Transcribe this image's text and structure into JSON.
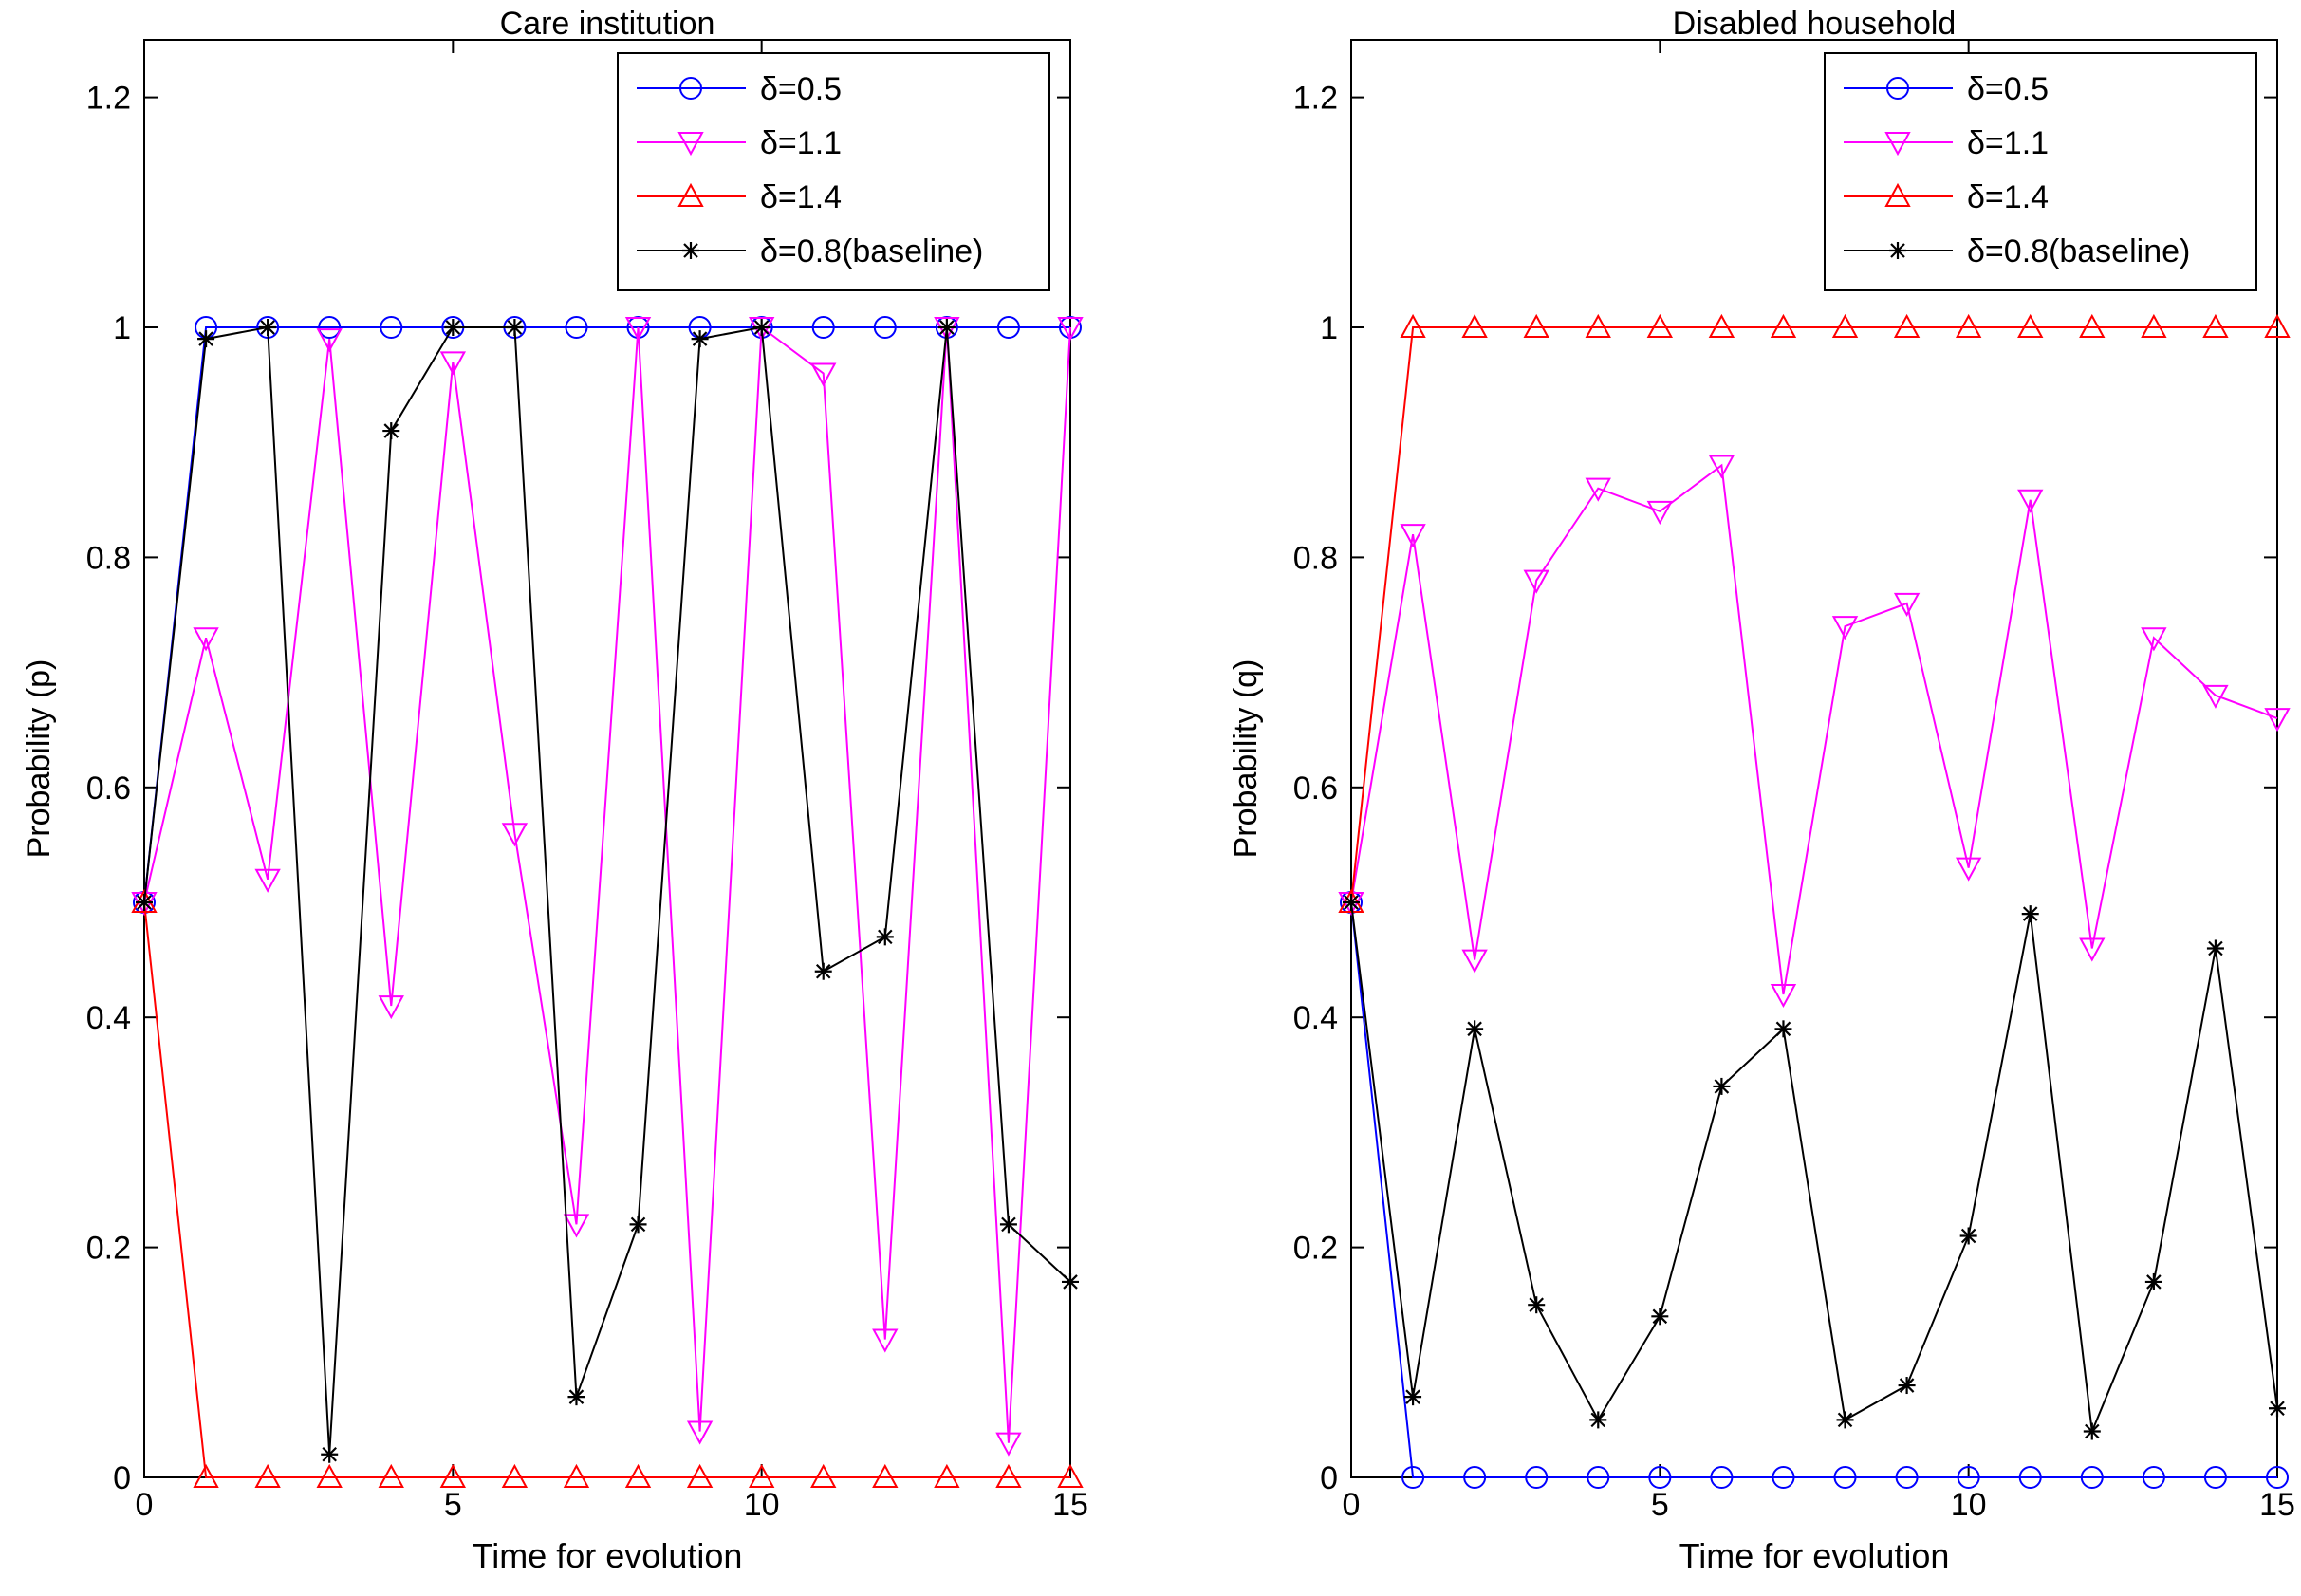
{
  "chart_data": [
    {
      "type": "line",
      "title": "Care institution",
      "xlabel": "Time for evolution",
      "ylabel": "Probability (p)",
      "xlim": [
        0,
        15
      ],
      "ylim": [
        0,
        1.25
      ],
      "xticks": [
        0,
        5,
        10,
        15
      ],
      "yticks": [
        0,
        0.2,
        0.4,
        0.6,
        0.8,
        1,
        1.2
      ],
      "ytick_labels": [
        "0",
        "0.2",
        "0.4",
        "0.6",
        "0.8",
        "1",
        "1.2"
      ],
      "xtick_labels": [
        "0",
        "5",
        "10",
        "15"
      ],
      "grid": false,
      "legend_position": "top-right",
      "x": [
        0,
        1,
        2,
        3,
        4,
        5,
        6,
        7,
        8,
        9,
        10,
        11,
        12,
        13,
        14,
        15
      ],
      "series": [
        {
          "name": "δ=0.5",
          "color": "#0000ff",
          "marker": "circle",
          "values": [
            0.5,
            1,
            1,
            1,
            1,
            1,
            1,
            1,
            1,
            1,
            1,
            1,
            1,
            1,
            1,
            1
          ]
        },
        {
          "name": "δ=1.1",
          "color": "#ff00ff",
          "marker": "triangle-down",
          "values": [
            0.5,
            0.73,
            0.52,
            0.99,
            0.41,
            0.97,
            0.56,
            0.22,
            1.0,
            0.04,
            1.0,
            0.96,
            0.12,
            1.0,
            0.03,
            1.0
          ]
        },
        {
          "name": "δ=1.4",
          "color": "#ff0000",
          "marker": "triangle-up",
          "values": [
            0.5,
            0,
            0,
            0,
            0,
            0,
            0,
            0,
            0,
            0,
            0,
            0,
            0,
            0,
            0,
            0
          ]
        },
        {
          "name": "δ=0.8(baseline)",
          "color": "#000000",
          "marker": "star",
          "x": [
            0,
            1,
            2,
            3,
            4,
            5,
            6,
            7,
            8,
            9,
            10,
            11,
            12,
            13,
            14,
            15
          ],
          "values": [
            0.5,
            0.99,
            1.0,
            0.02,
            0.91,
            1.0,
            1.0,
            0.07,
            0.22,
            0.99,
            1.0,
            0.44,
            0.47,
            1.0,
            0.22,
            0.17
          ]
        }
      ]
    },
    {
      "type": "line",
      "title": "Disabled household",
      "xlabel": "Time for evolution",
      "ylabel": "Probability (q)",
      "xlim": [
        0,
        15
      ],
      "ylim": [
        0,
        1.25
      ],
      "xticks": [
        0,
        5,
        10,
        15
      ],
      "yticks": [
        0,
        0.2,
        0.4,
        0.6,
        0.8,
        1,
        1.2
      ],
      "ytick_labels": [
        "0",
        "0.2",
        "0.4",
        "0.6",
        "0.8",
        "1",
        "1.2"
      ],
      "xtick_labels": [
        "0",
        "5",
        "10",
        "15"
      ],
      "grid": false,
      "legend_position": "top-right",
      "x": [
        0,
        1,
        2,
        3,
        4,
        5,
        6,
        7,
        8,
        9,
        10,
        11,
        12,
        13,
        14,
        15
      ],
      "series": [
        {
          "name": "δ=0.5",
          "color": "#0000ff",
          "marker": "circle",
          "values": [
            0.5,
            0,
            0,
            0,
            0,
            0,
            0,
            0,
            0,
            0,
            0,
            0,
            0,
            0,
            0,
            0
          ]
        },
        {
          "name": "δ=1.1",
          "color": "#ff00ff",
          "marker": "triangle-down",
          "values": [
            0.5,
            0.82,
            0.45,
            0.78,
            0.86,
            0.84,
            0.88,
            0.42,
            0.74,
            0.76,
            0.53,
            0.85,
            0.46,
            0.73,
            0.68,
            0.66
          ]
        },
        {
          "name": "δ=1.4",
          "color": "#ff0000",
          "marker": "triangle-up",
          "values": [
            0.5,
            1,
            1,
            1,
            1,
            1,
            1,
            1,
            1,
            1,
            1,
            1,
            1,
            1,
            1,
            1
          ]
        },
        {
          "name": "δ=0.8(baseline)",
          "color": "#000000",
          "marker": "star",
          "values": [
            0.5,
            0.07,
            0.39,
            0.15,
            0.05,
            0.14,
            0.34,
            0.39,
            0.05,
            0.08,
            0.21,
            0.49,
            0.04,
            0.17,
            0.46,
            0.06
          ]
        }
      ]
    }
  ]
}
